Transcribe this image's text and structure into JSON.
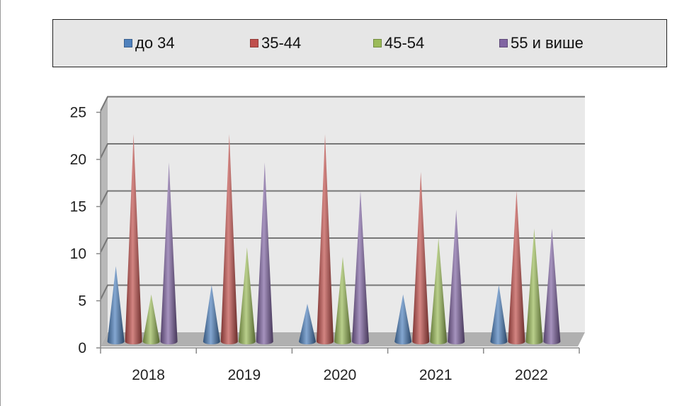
{
  "chart_data": {
    "type": "bar",
    "style": "3d-cone",
    "categories": [
      "2018",
      "2019",
      "2020",
      "2021",
      "2022"
    ],
    "series": [
      {
        "name": "до 34",
        "color": "#4f81bd",
        "values": [
          8,
          6,
          4,
          5,
          6
        ]
      },
      {
        "name": "35-44",
        "color": "#c0504d",
        "values": [
          22,
          22,
          22,
          18,
          16
        ]
      },
      {
        "name": "45-54",
        "color": "#9bbb59",
        "values": [
          5,
          10,
          9,
          11,
          12
        ]
      },
      {
        "name": "55 и више",
        "color": "#8064a2",
        "values": [
          19,
          19,
          16,
          14,
          12
        ]
      }
    ],
    "yticks": [
      "0",
      "5",
      "10",
      "15",
      "20",
      "25"
    ],
    "ylim": [
      0,
      25
    ],
    "grid": true,
    "legend": "top"
  }
}
